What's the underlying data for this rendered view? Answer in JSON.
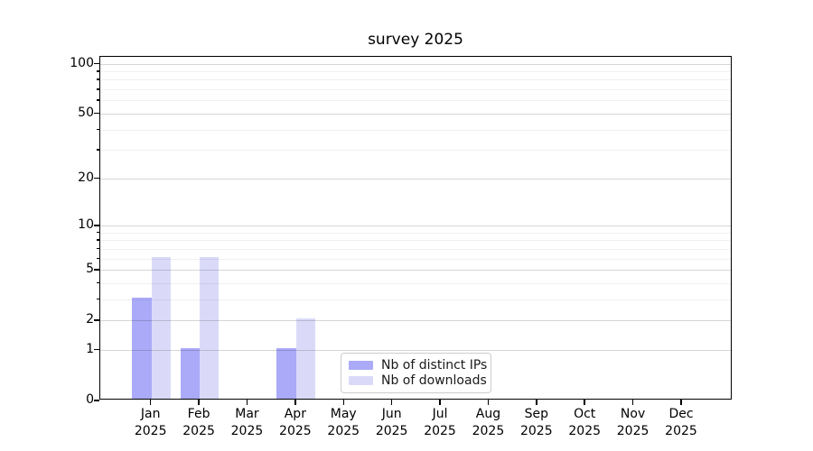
{
  "chart_data": {
    "type": "bar",
    "title": "survey 2025",
    "categories": [
      "Jan",
      "Feb",
      "Mar",
      "Apr",
      "May",
      "Jun",
      "Jul",
      "Aug",
      "Sep",
      "Oct",
      "Nov",
      "Dec"
    ],
    "category_year": "2025",
    "series": [
      {
        "name": "Nb of distinct IPs",
        "color": "#aaaaf8",
        "values": [
          3,
          1,
          0,
          1,
          0,
          0,
          0,
          0,
          0,
          0,
          0,
          0
        ]
      },
      {
        "name": "Nb of downloads",
        "color": "#dadaf8",
        "values": [
          6,
          6,
          0,
          2,
          0,
          0,
          0,
          0,
          0,
          0,
          0,
          0
        ]
      }
    ],
    "xlabel": "",
    "ylabel": "",
    "y_scale": "log1p",
    "ylim": [
      0,
      110
    ],
    "y_major_ticks": [
      0,
      1,
      2,
      5,
      10,
      20,
      50,
      100
    ],
    "y_minor_gridlines": [
      3,
      4,
      6,
      7,
      8,
      9,
      30,
      40,
      60,
      70,
      80,
      90
    ],
    "grid": true,
    "legend_position": "lower center",
    "colors": {
      "spine": "#000000",
      "background": "#ffffff"
    }
  }
}
